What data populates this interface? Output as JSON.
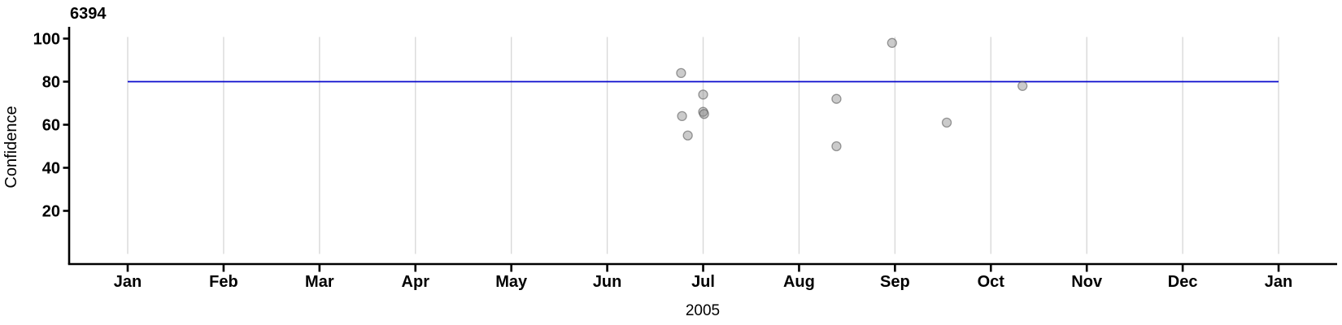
{
  "chart_data": {
    "type": "scatter",
    "title": "6394",
    "ylabel": "Confidence",
    "xlabel": "2005",
    "x_tick_labels": [
      "Jan",
      "Feb",
      "Mar",
      "Apr",
      "May",
      "Jun",
      "Jul",
      "Aug",
      "Sep",
      "Oct",
      "Nov",
      "Dec",
      "Jan"
    ],
    "y_tick_values": [
      20,
      40,
      60,
      80,
      100
    ],
    "y_axis_range_shown": [
      0,
      100
    ],
    "grid": "vertical-month-gridlines",
    "legend": "none",
    "reference_line": {
      "y": 80,
      "color": "#0A0ACD",
      "span_months": [
        0,
        12
      ]
    },
    "points": [
      {
        "month_offset": 5.77,
        "confidence": 84
      },
      {
        "month_offset": 5.78,
        "confidence": 64
      },
      {
        "month_offset": 5.84,
        "confidence": 55
      },
      {
        "month_offset": 6.0,
        "confidence": 74
      },
      {
        "month_offset": 6.0,
        "confidence": 66
      },
      {
        "month_offset": 6.01,
        "confidence": 65
      },
      {
        "month_offset": 7.39,
        "confidence": 72
      },
      {
        "month_offset": 7.39,
        "confidence": 50
      },
      {
        "month_offset": 7.97,
        "confidence": 98
      },
      {
        "month_offset": 8.54,
        "confidence": 61
      },
      {
        "month_offset": 9.33,
        "confidence": 78
      }
    ],
    "point_style": {
      "fill": "rgba(140,140,140,0.45)",
      "stroke": "rgba(80,80,80,0.55)",
      "radius": 5.5
    },
    "grid_color": "#D9D9D9",
    "axis_color": "#000000"
  }
}
